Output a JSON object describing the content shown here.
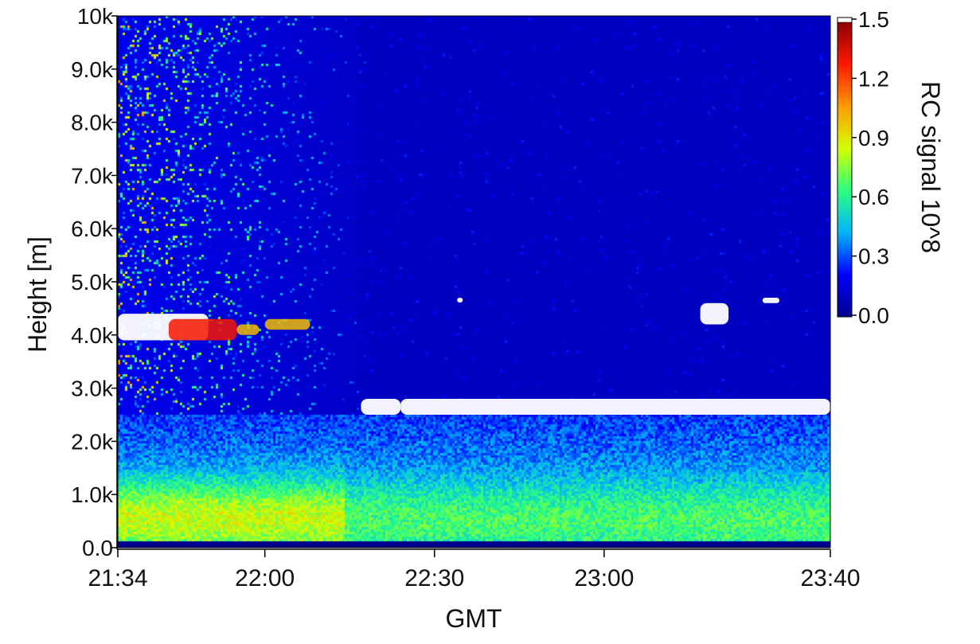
{
  "chart_data": {
    "type": "heatmap",
    "xlabel": "GMT",
    "ylabel": "Height [m]",
    "colorbar_label": "RC signal 10^8",
    "x_range": [
      "21:34",
      "23:40"
    ],
    "x_ticks": [
      "21:34",
      "22:00",
      "22:30",
      "23:00",
      "23:40"
    ],
    "x_tick_values_min": [
      0,
      26,
      56,
      86,
      126
    ],
    "y_range": [
      0,
      10000
    ],
    "y_ticks": [
      "0.0",
      "1.0k",
      "2.0k",
      "3.0k",
      "4.0k",
      "5.0k",
      "6.0k",
      "7.0k",
      "8.0k",
      "9.0k",
      "10k"
    ],
    "y_tick_values": [
      0,
      1000,
      2000,
      3000,
      4000,
      5000,
      6000,
      7000,
      8000,
      9000,
      10000
    ],
    "colorbar_range": [
      0.0,
      1.5
    ],
    "colorbar_ticks": [
      "0.0",
      "0.3",
      "0.6",
      "0.9",
      "1.2",
      "1.5"
    ],
    "colorbar_tick_values": [
      0.0,
      0.3,
      0.6,
      0.9,
      1.2,
      1.5
    ],
    "colormap": [
      "#00008f",
      "#0000ff",
      "#00b4ff",
      "#2aff7f",
      "#d4ff00",
      "#ff9a00",
      "#ff1800",
      "#8f0000"
    ],
    "colormap_over": "#ffffff",
    "layers": [
      {
        "t_start_min": 0,
        "t_end_min": 16,
        "h_base_m": 3900,
        "h_top_m": 4400,
        "signal": "saturated"
      },
      {
        "t_start_min": 9,
        "t_end_min": 21,
        "h_base_m": 3900,
        "h_top_m": 4300,
        "signal": 1.3
      },
      {
        "t_start_min": 21,
        "t_end_min": 25,
        "h_base_m": 4000,
        "h_top_m": 4200,
        "signal": 1.0
      },
      {
        "t_start_min": 26,
        "t_end_min": 34,
        "h_base_m": 4100,
        "h_top_m": 4300,
        "signal": 1.0
      },
      {
        "t_start_min": 43,
        "t_end_min": 50,
        "h_base_m": 2500,
        "h_top_m": 2800,
        "signal": "saturated"
      },
      {
        "t_start_min": 50,
        "t_end_min": 126,
        "h_base_m": 2500,
        "h_top_m": 2800,
        "signal": "saturated"
      },
      {
        "t_start_min": 60,
        "t_end_min": 61,
        "h_base_m": 4700,
        "h_top_m": 4700,
        "signal": "saturated"
      },
      {
        "t_start_min": 103,
        "t_end_min": 108,
        "h_base_m": 4200,
        "h_top_m": 4600,
        "signal": "saturated"
      },
      {
        "t_start_min": 114,
        "t_end_min": 117,
        "h_base_m": 4600,
        "h_top_m": 4700,
        "signal": "saturated"
      }
    ],
    "background": {
      "boundary_layer_top_m": 2500,
      "near_ground_peak_m": 600,
      "near_ground_peak_signal": 0.7
    }
  }
}
